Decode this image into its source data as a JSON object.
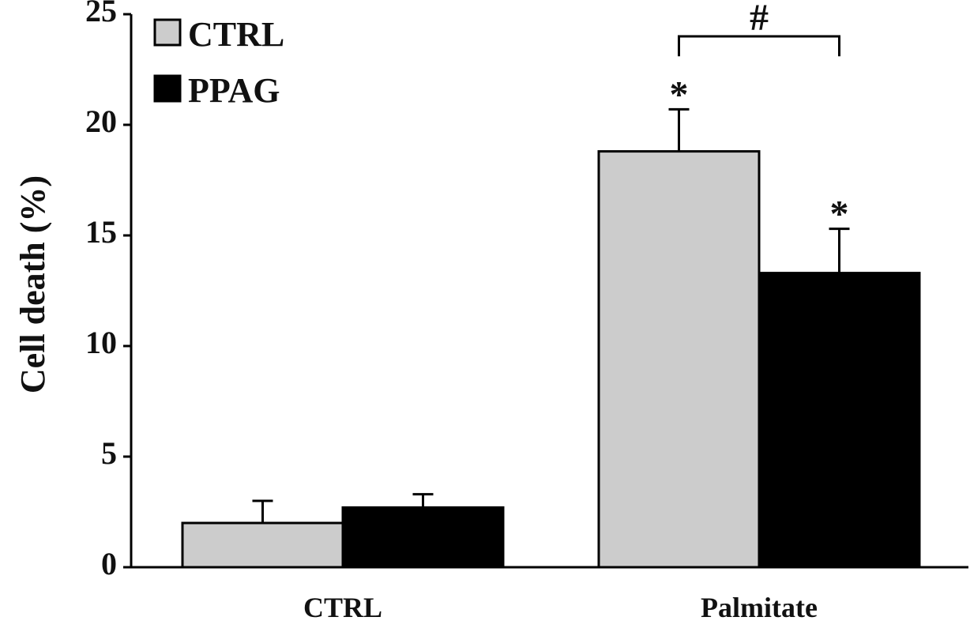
{
  "chart_data": {
    "type": "bar",
    "categories": [
      "CTRL",
      "Palmitate"
    ],
    "series": [
      {
        "name": "CTRL",
        "values": [
          2.0,
          18.8
        ],
        "errors": [
          1.0,
          1.9
        ],
        "color": "#cccccc"
      },
      {
        "name": "PPAG",
        "values": [
          2.7,
          13.3
        ],
        "errors": [
          0.6,
          2.0
        ],
        "color": "#000000"
      }
    ],
    "title": "",
    "xlabel": "",
    "ylabel": "Cell death (%)",
    "ylim": [
      0,
      25
    ],
    "yticks": [
      "0",
      "5",
      "10",
      "15",
      "20",
      "25"
    ],
    "grid": false,
    "legend": "top-left",
    "annotations": {
      "stars": [
        "*",
        "*"
      ],
      "bracket_label": "#"
    }
  }
}
